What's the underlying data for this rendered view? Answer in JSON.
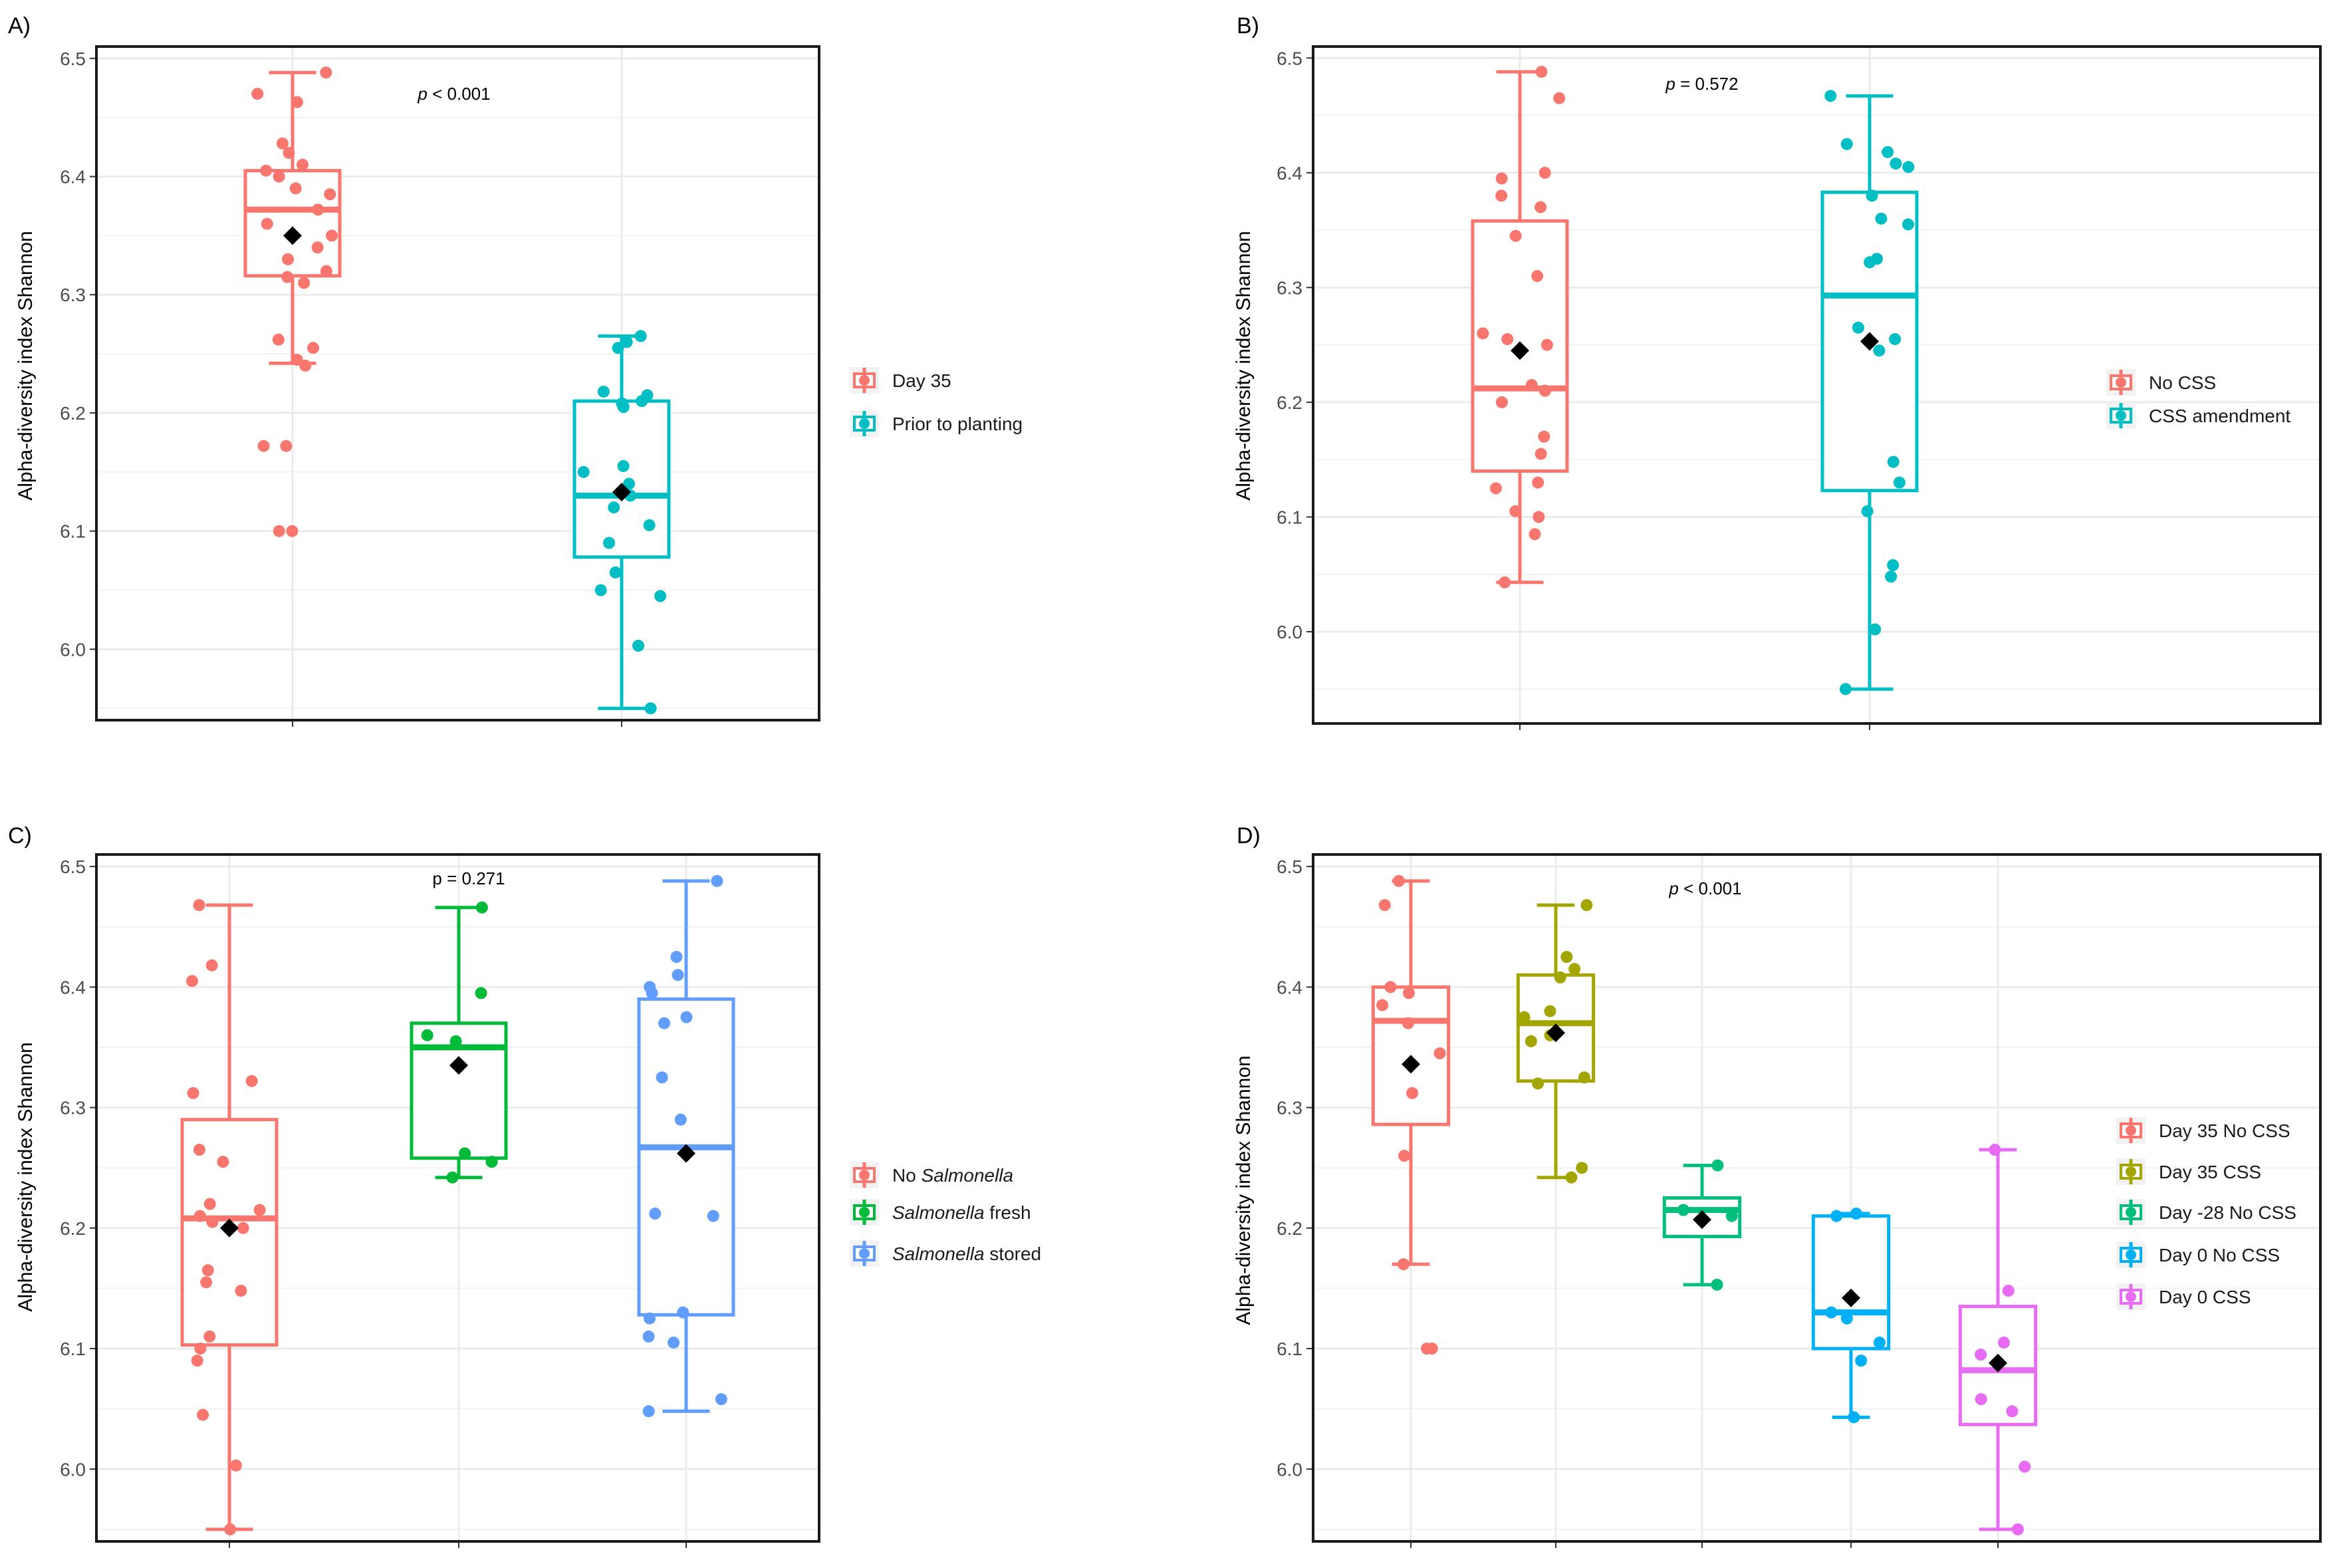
{
  "figure": {
    "y_axis_label": "Alpha-diversity index Shannon"
  },
  "chart_data": [
    {
      "panel": "A)",
      "type": "boxplot",
      "p_prefix": "p",
      "p_rest": " < 0.001",
      "ylim": [
        5.94,
        6.51
      ],
      "yticks": [
        "6.0",
        "6.1",
        "6.2",
        "6.3",
        "6.4",
        "6.5"
      ],
      "grid": true,
      "groups": [
        {
          "name": "Day 35",
          "color": "#f8766d",
          "min": 6.242,
          "q1": 6.316,
          "median": 6.372,
          "q3": 6.405,
          "max": 6.488,
          "mean": 6.35,
          "points": [
            6.488,
            6.47,
            6.463,
            6.428,
            6.42,
            6.41,
            6.405,
            6.4,
            6.39,
            6.385,
            6.372,
            6.36,
            6.35,
            6.34,
            6.33,
            6.32,
            6.315,
            6.31,
            6.262,
            6.255,
            6.245,
            6.24,
            6.172,
            6.172,
            6.1,
            6.1
          ]
        },
        {
          "name": "Prior to planting",
          "color": "#00bfc4",
          "min": 5.95,
          "q1": 6.078,
          "median": 6.13,
          "q3": 6.21,
          "max": 6.265,
          "mean": 6.133,
          "points": [
            6.265,
            6.26,
            6.255,
            6.218,
            6.215,
            6.21,
            6.208,
            6.205,
            6.155,
            6.15,
            6.14,
            6.13,
            6.12,
            6.105,
            6.09,
            6.065,
            6.05,
            6.045,
            6.003,
            5.95
          ]
        }
      ]
    },
    {
      "panel": "B)",
      "type": "boxplot",
      "p_prefix": "p",
      "p_rest": " = 0.572",
      "ylim": [
        5.92,
        6.51
      ],
      "yticks": [
        "6.0",
        "6.1",
        "6.2",
        "6.3",
        "6.4",
        "6.5"
      ],
      "grid": true,
      "groups": [
        {
          "name": "No CSS",
          "color": "#f8766d",
          "min": 6.043,
          "q1": 6.14,
          "median": 6.212,
          "q3": 6.358,
          "max": 6.488,
          "mean": 6.245,
          "points": [
            6.488,
            6.465,
            6.4,
            6.395,
            6.38,
            6.37,
            6.345,
            6.31,
            6.26,
            6.255,
            6.25,
            6.215,
            6.21,
            6.2,
            6.17,
            6.155,
            6.13,
            6.125,
            6.105,
            6.1,
            6.085,
            6.043
          ]
        },
        {
          "name": "CSS amendment",
          "color": "#00bfc4",
          "min": 5.95,
          "q1": 6.123,
          "median": 6.293,
          "q3": 6.383,
          "max": 6.467,
          "mean": 6.253,
          "points": [
            6.467,
            6.425,
            6.418,
            6.408,
            6.405,
            6.38,
            6.36,
            6.355,
            6.325,
            6.322,
            6.265,
            6.255,
            6.245,
            6.148,
            6.13,
            6.105,
            6.058,
            6.048,
            6.002,
            5.95
          ]
        }
      ]
    },
    {
      "panel": "C)",
      "type": "boxplot",
      "p_prefix": "",
      "p_rest": "p = 0.271",
      "ylim": [
        5.94,
        6.51
      ],
      "yticks": [
        "6.0",
        "6.1",
        "6.2",
        "6.3",
        "6.4",
        "6.5"
      ],
      "grid": true,
      "groups": [
        {
          "name": "No Salmonella",
          "legend_italic": "Salmonella",
          "legend_pre": "No ",
          "legend_post": "",
          "color": "#f8766d",
          "min": 5.95,
          "q1": 6.103,
          "median": 6.208,
          "q3": 6.29,
          "max": 6.468,
          "mean": 6.2,
          "points": [
            6.468,
            6.418,
            6.405,
            6.322,
            6.312,
            6.265,
            6.255,
            6.22,
            6.215,
            6.21,
            6.205,
            6.2,
            6.165,
            6.155,
            6.148,
            6.11,
            6.1,
            6.09,
            6.045,
            6.003,
            5.95
          ]
        },
        {
          "name": "Salmonella fresh",
          "legend_italic": "Salmonella",
          "legend_pre": "",
          "legend_post": " fresh",
          "color": "#00ba38",
          "min": 6.242,
          "q1": 6.258,
          "median": 6.35,
          "q3": 6.37,
          "max": 6.466,
          "mean": 6.335,
          "points": [
            6.466,
            6.395,
            6.36,
            6.355,
            6.262,
            6.255,
            6.242
          ]
        },
        {
          "name": "Salmonella stored",
          "legend_italic": "Salmonella",
          "legend_pre": "",
          "legend_post": " stored",
          "color": "#619cff",
          "min": 6.048,
          "q1": 6.128,
          "median": 6.267,
          "q3": 6.39,
          "max": 6.488,
          "mean": 6.262,
          "points": [
            6.488,
            6.425,
            6.41,
            6.4,
            6.395,
            6.375,
            6.37,
            6.325,
            6.29,
            6.212,
            6.21,
            6.13,
            6.125,
            6.11,
            6.105,
            6.058,
            6.048
          ]
        }
      ]
    },
    {
      "panel": "D)",
      "type": "boxplot",
      "p_prefix": "p",
      "p_rest": " < 0.001",
      "ylim": [
        5.94,
        6.51
      ],
      "yticks": [
        "6.0",
        "6.1",
        "6.2",
        "6.3",
        "6.4",
        "6.5"
      ],
      "grid": true,
      "groups": [
        {
          "name": "Day 35 No CSS",
          "color": "#f8766d",
          "min": 6.17,
          "q1": 6.286,
          "median": 6.372,
          "q3": 6.4,
          "max": 6.488,
          "mean": 6.336,
          "points": [
            6.488,
            6.468,
            6.4,
            6.395,
            6.385,
            6.37,
            6.345,
            6.312,
            6.26,
            6.17,
            6.1,
            6.1
          ]
        },
        {
          "name": "Day 35 CSS",
          "color": "#a3a500",
          "min": 6.242,
          "q1": 6.322,
          "median": 6.37,
          "q3": 6.41,
          "max": 6.468,
          "mean": 6.362,
          "points": [
            6.468,
            6.425,
            6.415,
            6.408,
            6.38,
            6.375,
            6.36,
            6.355,
            6.325,
            6.32,
            6.25,
            6.242
          ]
        },
        {
          "name": "Day -28 No CSS",
          "color": "#00bf7d",
          "min": 6.153,
          "q1": 6.193,
          "median": 6.215,
          "q3": 6.225,
          "max": 6.252,
          "mean": 6.207,
          "points": [
            6.252,
            6.215,
            6.21,
            6.153
          ]
        },
        {
          "name": "Day 0 No CSS",
          "color": "#00b0f6",
          "min": 6.043,
          "q1": 6.1,
          "median": 6.13,
          "q3": 6.21,
          "max": 6.212,
          "mean": 6.142,
          "points": [
            6.212,
            6.21,
            6.13,
            6.125,
            6.105,
            6.09,
            6.043
          ]
        },
        {
          "name": "Day 0 CSS",
          "color": "#e76bf3",
          "min": 5.95,
          "q1": 6.037,
          "median": 6.082,
          "q3": 6.135,
          "max": 6.265,
          "mean": 6.088,
          "points": [
            6.265,
            6.148,
            6.105,
            6.095,
            6.058,
            6.048,
            6.002,
            5.95
          ]
        }
      ]
    }
  ]
}
